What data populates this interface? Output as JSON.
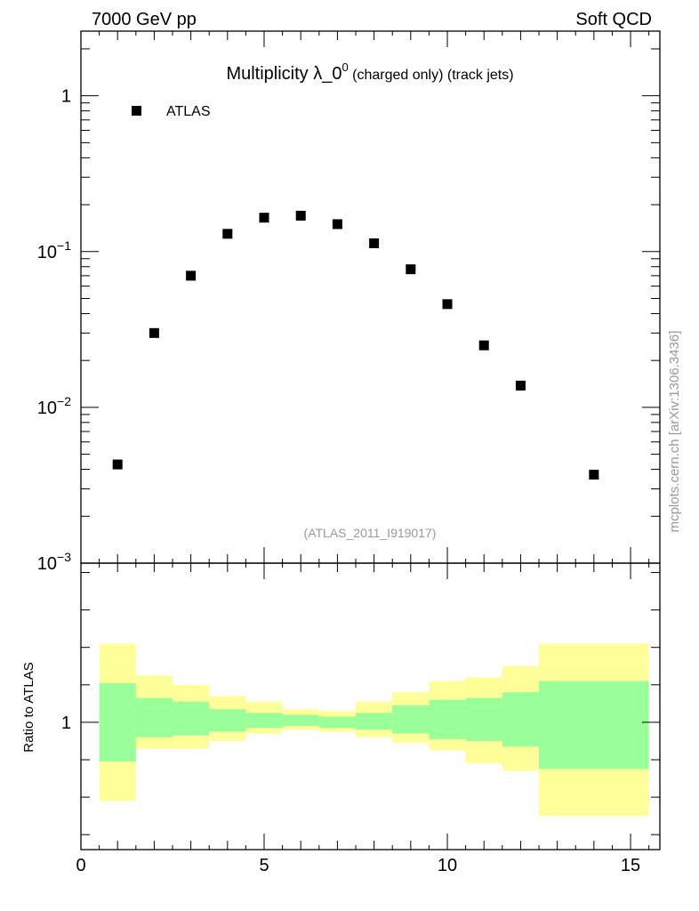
{
  "header": {
    "left": "7000 GeV pp",
    "right": "Soft QCD"
  },
  "side_label": "mcplots.cern.ch [arXiv:1306.3436]",
  "chart_data": [
    {
      "type": "scatter",
      "title_main": "Multiplicity λ_0",
      "title_sup": "0",
      "title_rest": " (charged only) (track jets)",
      "watermark": "(ATLAS_2011_I919017)",
      "xlabel": "",
      "ylabel": "",
      "xlim": [
        0,
        15.8
      ],
      "ylim": [
        0.001,
        2.6
      ],
      "yscale": "log",
      "y_ticks": [
        {
          "value": 1,
          "base": "1",
          "exp": ""
        },
        {
          "value": 0.1,
          "base": "10",
          "exp": "−1"
        },
        {
          "value": 0.01,
          "base": "10",
          "exp": "−2"
        },
        {
          "value": 0.001,
          "base": "10",
          "exp": "−3"
        }
      ],
      "legend": {
        "placement": "top-left",
        "entry": "ATLAS"
      },
      "series": [
        {
          "name": "ATLAS",
          "color": "#000000",
          "marker": "square",
          "x": [
            1,
            2,
            3,
            4,
            5,
            6,
            7,
            8,
            9,
            10,
            11,
            12,
            14
          ],
          "y": [
            0.0043,
            0.03,
            0.07,
            0.13,
            0.165,
            0.17,
            0.15,
            0.113,
            0.077,
            0.046,
            0.025,
            0.0138,
            0.0037
          ]
        }
      ]
    },
    {
      "type": "area",
      "ylabel": "Ratio to ATLAS",
      "xlabel": "",
      "xlim": [
        0,
        15.8
      ],
      "ylim": [
        0.32,
        1.85
      ],
      "y_ticks": [
        {
          "value": 1,
          "label": "1"
        }
      ],
      "x_ticks": [
        {
          "value": 0,
          "label": "0"
        },
        {
          "value": 5,
          "label": "5"
        },
        {
          "value": 10,
          "label": "10"
        },
        {
          "value": 15,
          "label": "15"
        }
      ],
      "band_colors": {
        "outer": "#ffff99",
        "inner": "#99ff99"
      },
      "bins": [
        {
          "lo": 0.5,
          "hi": 1.5,
          "yellow": [
            0.58,
            1.42
          ],
          "green": [
            0.79,
            1.21
          ]
        },
        {
          "lo": 1.5,
          "hi": 2.5,
          "yellow": [
            0.86,
            1.25
          ],
          "green": [
            0.92,
            1.13
          ]
        },
        {
          "lo": 2.5,
          "hi": 3.5,
          "yellow": [
            0.86,
            1.2
          ],
          "green": [
            0.93,
            1.11
          ]
        },
        {
          "lo": 3.5,
          "hi": 4.5,
          "yellow": [
            0.9,
            1.14
          ],
          "green": [
            0.95,
            1.07
          ]
        },
        {
          "lo": 4.5,
          "hi": 5.5,
          "yellow": [
            0.94,
            1.11
          ],
          "green": [
            0.97,
            1.05
          ]
        },
        {
          "lo": 5.5,
          "hi": 6.5,
          "yellow": [
            0.96,
            1.07
          ],
          "green": [
            0.98,
            1.04
          ]
        },
        {
          "lo": 6.5,
          "hi": 7.5,
          "yellow": [
            0.95,
            1.06
          ],
          "green": [
            0.97,
            1.03
          ]
        },
        {
          "lo": 7.5,
          "hi": 8.5,
          "yellow": [
            0.92,
            1.11
          ],
          "green": [
            0.96,
            1.05
          ]
        },
        {
          "lo": 8.5,
          "hi": 9.5,
          "yellow": [
            0.89,
            1.16
          ],
          "green": [
            0.94,
            1.09
          ]
        },
        {
          "lo": 9.5,
          "hi": 10.5,
          "yellow": [
            0.85,
            1.22
          ],
          "green": [
            0.91,
            1.12
          ]
        },
        {
          "lo": 10.5,
          "hi": 11.5,
          "yellow": [
            0.78,
            1.24
          ],
          "green": [
            0.9,
            1.13
          ]
        },
        {
          "lo": 11.5,
          "hi": 12.5,
          "yellow": [
            0.74,
            1.3
          ],
          "green": [
            0.87,
            1.16
          ]
        },
        {
          "lo": 12.5,
          "hi": 15.5,
          "yellow": [
            0.5,
            1.42
          ],
          "green": [
            0.75,
            1.22
          ]
        }
      ]
    }
  ]
}
